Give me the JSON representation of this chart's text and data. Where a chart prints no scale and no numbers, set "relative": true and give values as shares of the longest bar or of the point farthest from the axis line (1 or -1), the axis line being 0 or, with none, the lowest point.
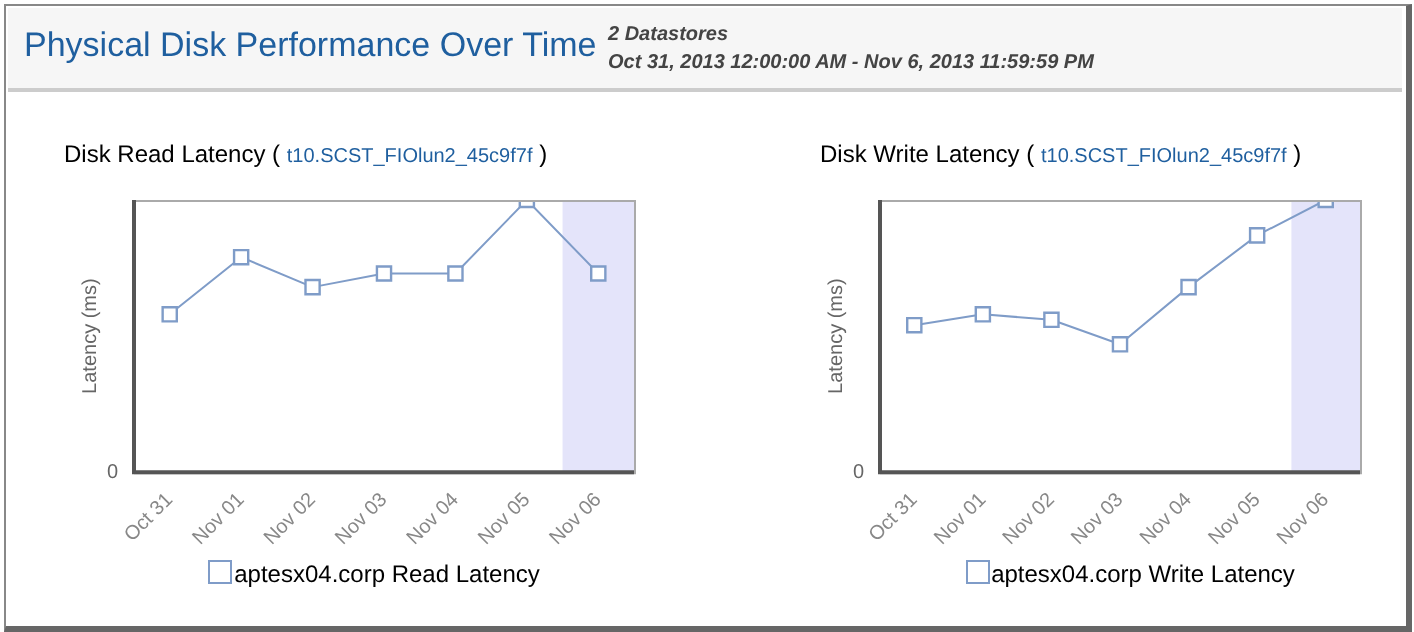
{
  "chart_data": [
    {
      "type": "line",
      "title": "Disk Read Latency ( t10.SCST_FIOlun2_45c9f7f )",
      "ylabel": "Latency (ms)",
      "relative": true,
      "annotations": [
        "Physical Disk Performance Over Time",
        "2 Datastores",
        "Oct 31, 2013 12:00:00 AM - Nov 6, 2013 11:59:59 PM",
        "0"
      ],
      "categories": [
        "Oct 31",
        "Nov 01",
        "Nov 02",
        "Nov 03",
        "Nov 04",
        "Nov 05",
        "Nov 06"
      ],
      "series": [
        {
          "name": "aptesx04.corp Read Latency",
          "color": "#7f9cc8",
          "values": [
            0.58,
            0.79,
            0.68,
            0.73,
            0.73,
            1,
            0.73
          ]
        }
      ],
      "bands": [
        {
          "axis": "x",
          "from": "Nov 06",
          "to": "Nov 06",
          "color": "#e4e4fa"
        }
      ],
      "marker": "square",
      "legend": "bottom",
      "grid": false
    },
    {
      "type": "line",
      "title": "Disk Write Latency ( t10.SCST_FIOlun2_45c9f7f )",
      "ylabel": "Latency (ms)",
      "relative": true,
      "annotations": [
        "0"
      ],
      "categories": [
        "Oct 31",
        "Nov 01",
        "Nov 02",
        "Nov 03",
        "Nov 04",
        "Nov 05",
        "Nov 06"
      ],
      "series": [
        {
          "name": "aptesx04.corp Write Latency",
          "color": "#7f9cc8",
          "values": [
            0.54,
            0.58,
            0.56,
            0.47,
            0.68,
            0.87,
            1
          ]
        }
      ],
      "bands": [
        {
          "axis": "x",
          "from": "Nov 06",
          "to": "Nov 06",
          "color": "#e4e4fa"
        }
      ],
      "marker": "square",
      "legend": "bottom",
      "grid": false
    }
  ]
}
